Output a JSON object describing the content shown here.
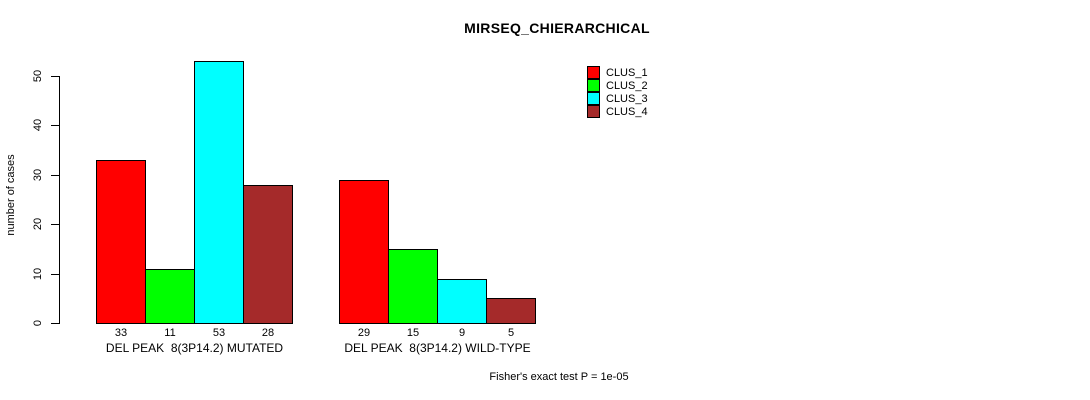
{
  "title": "MIRSEQ_CHIERARCHICAL",
  "chart_data": {
    "type": "bar",
    "title": "MIRSEQ_CHIERARCHICAL",
    "ylabel": "number of cases",
    "xlabel": "",
    "categories": [
      "DEL PEAK  8(3P14.2) MUTATED",
      "DEL PEAK  8(3P14.2) WILD-TYPE"
    ],
    "series": [
      {
        "name": "CLUS_1",
        "color": "#ff0000",
        "values": [
          33,
          29
        ]
      },
      {
        "name": "CLUS_2",
        "color": "#00ff00",
        "values": [
          11,
          15
        ]
      },
      {
        "name": "CLUS_3",
        "color": "#00ffff",
        "values": [
          53,
          9
        ]
      },
      {
        "name": "CLUS_4",
        "color": "#a52a2a",
        "values": [
          28,
          5
        ]
      }
    ],
    "bar_value_labels": [
      [
        "33",
        "11",
        "53",
        "28"
      ],
      [
        "29",
        "15",
        "9",
        "5"
      ]
    ],
    "ylim": [
      0,
      50
    ],
    "yticks": [
      "0",
      "10",
      "20",
      "30",
      "40",
      "50"
    ],
    "grid": false,
    "legend_position": "top-right",
    "annotation": "Fisher's exact test P = 1e-05"
  },
  "colors": {
    "axis": "#000000",
    "text": "#000000",
    "background": "#ffffff"
  }
}
